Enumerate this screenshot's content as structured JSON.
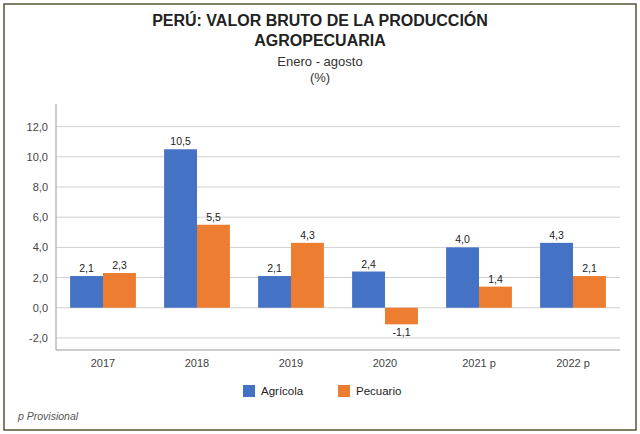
{
  "chart_data": {
    "type": "bar",
    "title": [
      "PERÚ: VALOR BRUTO DE LA PRODUCCIÓN",
      "AGROPECUARIA"
    ],
    "subtitle": [
      "Enero - agosto",
      "(%)"
    ],
    "annotations": [
      "p Provisional"
    ],
    "categories": [
      "2017",
      "2018",
      "2019",
      "2020",
      "2021 p",
      "2022 p"
    ],
    "series": [
      {
        "name": "Agrícola",
        "color": "#4472C4",
        "values": [
          2.1,
          10.5,
          2.1,
          2.4,
          4.0,
          4.3
        ],
        "value_labels": [
          "2,1",
          "10,5",
          "2,1",
          "2,4",
          "4,0",
          "4,3"
        ]
      },
      {
        "name": "Pecuario",
        "color": "#ED7D31",
        "values": [
          2.3,
          5.5,
          4.3,
          -1.1,
          1.4,
          2.1
        ],
        "value_labels": [
          "2,3",
          "5,5",
          "4,3",
          "-1,1",
          "1,4",
          "2,1"
        ]
      }
    ],
    "ylim": [
      -2.8,
      13.5
    ],
    "yticks": [
      {
        "value": -2.0,
        "label": "-2,0"
      },
      {
        "value": 0.0,
        "label": "0,0"
      },
      {
        "value": 2.0,
        "label": "2,0"
      },
      {
        "value": 4.0,
        "label": "4,0"
      },
      {
        "value": 6.0,
        "label": "6,0"
      },
      {
        "value": 8.0,
        "label": "8,0"
      },
      {
        "value": 10.0,
        "label": "10,0"
      },
      {
        "value": 12.0,
        "label": "12,0"
      }
    ],
    "grid": true,
    "data_labels": true,
    "legend": "bottom"
  }
}
